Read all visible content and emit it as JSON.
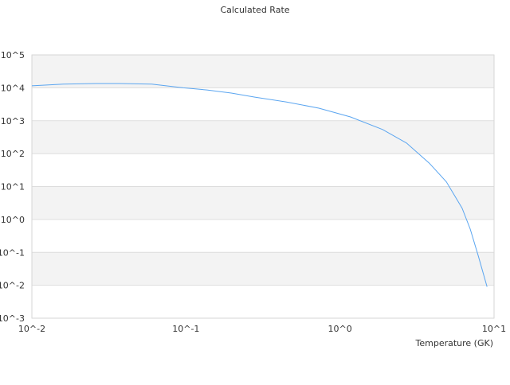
{
  "chart_data": {
    "type": "line",
    "title": "Calculated Rate",
    "xlabel": "Temperature (GK)",
    "ylabel": "",
    "xscale": "log",
    "yscale": "log",
    "xlim": [
      0.01,
      10
    ],
    "ylim": [
      0.001,
      100000
    ],
    "x_tick_labels": [
      "10^-2",
      "10^-1",
      "10^0",
      "10^1"
    ],
    "y_tick_labels": [
      "10^-3",
      "10^-2",
      "10^-1",
      "10^0",
      "10^1",
      "10^2",
      "10^3",
      "10^4",
      "10^5"
    ],
    "grid": true,
    "alternating_bands": true,
    "line_color": "#5aa5f0",
    "band_color": "#f3f3f3",
    "grid_color": "#dddddd",
    "series": [
      {
        "x": [
          0.01,
          0.016,
          0.026,
          0.037,
          0.06,
          0.096,
          0.137,
          0.197,
          0.28,
          0.45,
          0.73,
          1.17,
          1.89,
          2.7,
          3.8,
          4.9,
          6.2,
          7.0,
          7.9,
          9.0
        ],
        "y": [
          11500,
          13000,
          13500,
          13500,
          13000,
          10000,
          8600,
          6900,
          5200,
          3700,
          2400,
          1300,
          540,
          210,
          51,
          14,
          2.2,
          0.51,
          0.078,
          0.009
        ]
      }
    ]
  }
}
